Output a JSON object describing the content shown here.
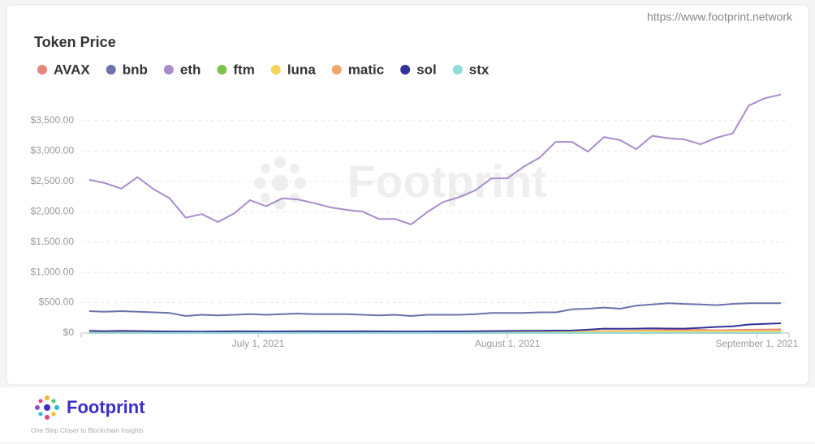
{
  "header": {
    "url": "https://www.footprint.network"
  },
  "chart_data": {
    "type": "line",
    "title": "Token Price",
    "watermark": "Footprint",
    "x": [
      "2021-06-10",
      "2021-06-12",
      "2021-06-14",
      "2021-06-16",
      "2021-06-18",
      "2021-06-20",
      "2021-06-22",
      "2021-06-24",
      "2021-06-26",
      "2021-06-28",
      "2021-06-30",
      "2021-07-02",
      "2021-07-04",
      "2021-07-06",
      "2021-07-08",
      "2021-07-10",
      "2021-07-12",
      "2021-07-14",
      "2021-07-16",
      "2021-07-18",
      "2021-07-20",
      "2021-07-22",
      "2021-07-24",
      "2021-07-26",
      "2021-07-28",
      "2021-07-30",
      "2021-08-01",
      "2021-08-03",
      "2021-08-05",
      "2021-08-07",
      "2021-08-09",
      "2021-08-11",
      "2021-08-13",
      "2021-08-15",
      "2021-08-17",
      "2021-08-19",
      "2021-08-21",
      "2021-08-23",
      "2021-08-25",
      "2021-08-27",
      "2021-08-29",
      "2021-08-31",
      "2021-09-02",
      "2021-09-04"
    ],
    "xlim": [
      "2021-06-09",
      "2021-09-05"
    ],
    "xticks": [
      {
        "value": "2021-07-01",
        "label": "July 1, 2021"
      },
      {
        "value": "2021-08-01",
        "label": "August 1, 2021"
      },
      {
        "value": "2021-09-01",
        "label": "September 1, 2021"
      }
    ],
    "ylim": [
      0,
      4100
    ],
    "yticks": [
      {
        "value": 0,
        "label": "$0"
      },
      {
        "value": 500,
        "label": "$500.00"
      },
      {
        "value": 1000,
        "label": "$1,000.00"
      },
      {
        "value": 1500,
        "label": "$1,500.00"
      },
      {
        "value": 2000,
        "label": "$2,000.00"
      },
      {
        "value": 2500,
        "label": "$2,500.00"
      },
      {
        "value": 3000,
        "label": "$3,000.00"
      },
      {
        "value": 3500,
        "label": "$3,500.00"
      }
    ],
    "grid": true,
    "legend": "top",
    "series": [
      {
        "name": "AVAX",
        "color": "#e8837d",
        "values": [
          12,
          12,
          11,
          10,
          10,
          9,
          8,
          9,
          10,
          10,
          11,
          11,
          12,
          13,
          12,
          12,
          13,
          12,
          12,
          12,
          12,
          13,
          13,
          14,
          14,
          18,
          20,
          20,
          22,
          23,
          25,
          30,
          33,
          35,
          40,
          45,
          48,
          50,
          52,
          45,
          50,
          55,
          58,
          60
        ]
      },
      {
        "name": "bnb",
        "color": "#6b72a8",
        "values": [
          360,
          350,
          360,
          350,
          340,
          330,
          280,
          300,
          290,
          300,
          310,
          300,
          310,
          320,
          310,
          310,
          310,
          300,
          290,
          300,
          280,
          300,
          300,
          300,
          310,
          330,
          330,
          330,
          340,
          340,
          390,
          400,
          420,
          400,
          450,
          470,
          490,
          480,
          470,
          460,
          480,
          490,
          490,
          490
        ]
      },
      {
        "name": "eth",
        "color": "#a98ccc",
        "values": [
          2525,
          2470,
          2380,
          2570,
          2370,
          2220,
          1900,
          1960,
          1830,
          1970,
          2190,
          2090,
          2220,
          2200,
          2140,
          2070,
          2030,
          2000,
          1880,
          1880,
          1790,
          1990,
          2160,
          2240,
          2350,
          2550,
          2550,
          2740,
          2890,
          3150,
          3150,
          2990,
          3230,
          3180,
          3030,
          3250,
          3210,
          3190,
          3110,
          3220,
          3290,
          3750,
          3870,
          3930
        ]
      },
      {
        "name": "ftm",
        "color": "#7dc24f",
        "values": [
          0.5,
          0.4,
          0.4,
          0.3,
          0.3,
          0.3,
          0.2,
          0.2,
          0.2,
          0.2,
          0.2,
          0.2,
          0.2,
          0.2,
          0.2,
          0.2,
          0.2,
          0.2,
          0.2,
          0.2,
          0.2,
          0.2,
          0.2,
          0.2,
          0.2,
          0.3,
          0.3,
          0.3,
          0.3,
          0.3,
          0.3,
          0.4,
          0.4,
          0.4,
          0.5,
          0.6,
          0.7,
          0.8,
          0.9,
          1.0,
          1.1,
          1.2,
          1.3,
          1.4
        ]
      },
      {
        "name": "luna",
        "color": "#f5d25b",
        "values": [
          7,
          7,
          6,
          6,
          6,
          6,
          5,
          6,
          6,
          6,
          7,
          7,
          8,
          9,
          9,
          10,
          10,
          11,
          11,
          11,
          12,
          13,
          14,
          15,
          13,
          14,
          16,
          18,
          20,
          20,
          22,
          25,
          28,
          30,
          32,
          32,
          30,
          30,
          30,
          32,
          32,
          32,
          34,
          34
        ]
      },
      {
        "name": "matic",
        "color": "#f0a86e",
        "values": [
          1.7,
          1.6,
          1.5,
          1.4,
          1.3,
          1.2,
          1.0,
          1.1,
          1.1,
          1.2,
          1.1,
          1.0,
          1.0,
          1.0,
          0.9,
          0.9,
          0.9,
          0.9,
          0.9,
          0.8,
          0.8,
          1.0,
          1.0,
          1.1,
          1.1,
          1.1,
          1.1,
          1.2,
          1.3,
          1.4,
          1.5,
          1.6,
          1.7,
          1.7,
          1.6,
          1.5,
          1.5,
          1.5,
          1.5,
          1.6,
          1.6,
          1.7,
          1.8,
          1.9
        ]
      },
      {
        "name": "sol",
        "color": "#33329b",
        "values": [
          35,
          30,
          35,
          32,
          28,
          26,
          25,
          24,
          26,
          28,
          27,
          26,
          27,
          28,
          28,
          27,
          27,
          28,
          27,
          26,
          25,
          26,
          27,
          27,
          28,
          32,
          34,
          36,
          38,
          40,
          42,
          55,
          72,
          70,
          72,
          76,
          74,
          72,
          85,
          100,
          110,
          140,
          150,
          160
        ]
      },
      {
        "name": "stx",
        "color": "#8fdcdc",
        "values": [
          1.3,
          1.3,
          1.2,
          1.2,
          1.1,
          1.0,
          0.9,
          0.9,
          1.0,
          1.0,
          1.0,
          1.0,
          1.0,
          1.0,
          1.0,
          1.0,
          1.0,
          1.0,
          0.9,
          0.9,
          0.9,
          1.0,
          1.0,
          1.0,
          1.0,
          1.1,
          1.1,
          1.2,
          1.2,
          1.3,
          1.3,
          1.4,
          1.4,
          1.5,
          1.5,
          1.5,
          1.6,
          1.6,
          1.6,
          1.7,
          1.7,
          1.8,
          1.8,
          1.9
        ]
      }
    ]
  },
  "footer": {
    "brand": "Footprint",
    "tagline": "One Step Closer to Blockchain Insights"
  }
}
